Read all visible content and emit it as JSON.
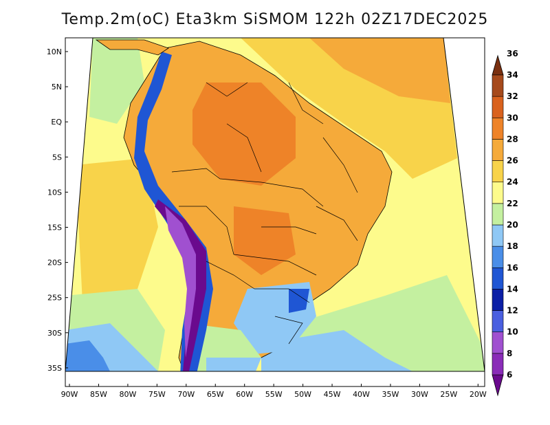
{
  "title": "Temp.2m(oC) Eta3km SiSMOM 122h 02Z17DEC2025",
  "axes": {
    "lat_labels": [
      "10N",
      "5N",
      "EQ",
      "5S",
      "10S",
      "15S",
      "20S",
      "25S",
      "30S",
      "35S"
    ],
    "lon_labels": [
      "90W",
      "85W",
      "80W",
      "75W",
      "70W",
      "65W",
      "60W",
      "55W",
      "50W",
      "45W",
      "40W",
      "35W",
      "30W",
      "25W",
      "20W"
    ]
  },
  "colorbar": {
    "units": "oC",
    "labels": [
      "6",
      "8",
      "10",
      "12",
      "14",
      "16",
      "18",
      "20",
      "22",
      "24",
      "26",
      "28",
      "30",
      "32",
      "34",
      "36"
    ],
    "colors": [
      "#6a0a8e",
      "#8a2cb8",
      "#a050d0",
      "#4a5fe0",
      "#0b1fa6",
      "#1f56d4",
      "#4a8ee8",
      "#8fc8f5",
      "#c4f0a0",
      "#fdfb8c",
      "#f8d34a",
      "#f5aa3a",
      "#ee8328",
      "#d9621e",
      "#a64a1c",
      "#7a3010"
    ]
  },
  "map_colors": {
    "ocean_warm": "#f8d34a",
    "ocean_mid": "#fdfb8c",
    "ocean_cool": "#c4f0a0",
    "ocean_cold": "#8fc8f5",
    "ocean_colder": "#4a8ee8",
    "land_hot": "#f5aa3a",
    "land_hotter": "#ee8328",
    "andes_cold": "#1f56d4",
    "andes_colder": "#6a0a8e",
    "outline": "#000000"
  }
}
